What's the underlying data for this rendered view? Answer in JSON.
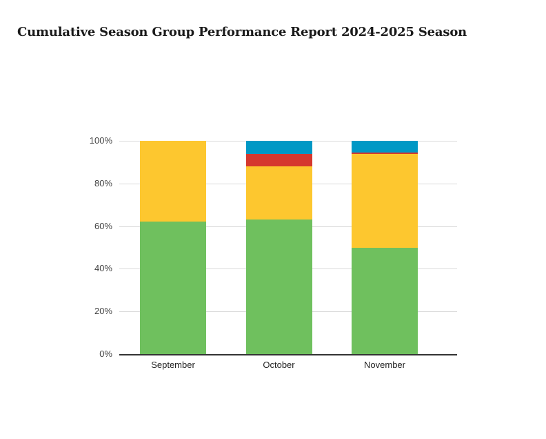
{
  "header": {
    "title": "Cumulative Season Group Performance Report 2024-2025 Season"
  },
  "chart_data": {
    "type": "bar",
    "stacked": true,
    "stacked_mode": "percent",
    "title": "Cumulative Season Group Performance Report 2024-2025 Season",
    "categories": [
      "September",
      "October",
      "November"
    ],
    "series": [
      {
        "name": "green",
        "color": "#6FC05E",
        "values": [
          62,
          63,
          50
        ]
      },
      {
        "name": "yellow",
        "color": "#FDC72F",
        "values": [
          38,
          25,
          44
        ]
      },
      {
        "name": "red",
        "color": "#D5382E",
        "values": [
          0,
          6,
          0.5
        ]
      },
      {
        "name": "blue",
        "color": "#0098C5",
        "values": [
          0,
          6,
          5.5
        ]
      }
    ],
    "xlabel": "",
    "ylabel": "",
    "y_ticks": [
      "0%",
      "20%",
      "40%",
      "60%",
      "80%",
      "100%"
    ],
    "ylim": [
      0,
      100
    ],
    "grid": true,
    "legend": "none"
  },
  "colors": {
    "axis_line": "#333333",
    "gridline": "#d9d9d9",
    "tick_label": "#444444",
    "category_label": "#222222",
    "title_text": "#1a1a1a",
    "background": "#ffffff"
  }
}
